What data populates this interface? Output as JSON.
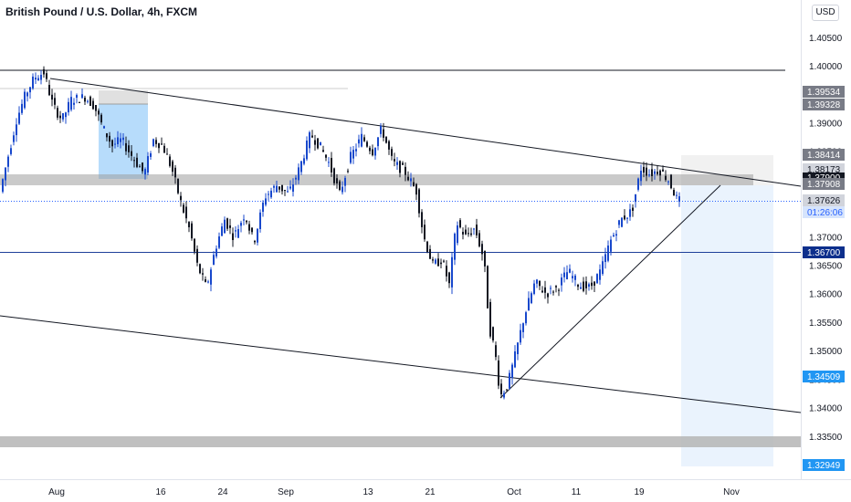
{
  "header": {
    "title": "British Pound / U.S. Dollar, 4h, FXCM",
    "currency_button": "USD"
  },
  "colors": {
    "candle": "#131722",
    "candle_up": "#1848cc",
    "price_line": "#2962ff",
    "support_line": "#1e3f9a",
    "zone": "#9e9e9e",
    "target_zone": "#e3effc",
    "entry_box": "#90caf9"
  },
  "price_scale": {
    "ticks": [
      "1.40500",
      "1.40000",
      "1.39500",
      "1.39000",
      "1.38500",
      "1.38000",
      "1.37500",
      "1.37000",
      "1.36500",
      "1.36000",
      "1.35500",
      "1.35000",
      "1.34500",
      "1.34000",
      "1.33500",
      "1.33000"
    ]
  },
  "time_scale": {
    "ticks": [
      "Aug",
      "16",
      "24",
      "Sep",
      "13",
      "21",
      "Oct",
      "11",
      "19",
      "Nov"
    ]
  },
  "price_labels": {
    "resistance_top": "1.39534",
    "resistance_bottom": "1.39328",
    "target_box_top": "1.38414",
    "level_1": "1.38173",
    "level_2": "1.37908",
    "level_3": "1.37900",
    "current_price": "1.37626",
    "countdown": "01:26:06",
    "support": "1.36700",
    "target_1": "1.34509",
    "target_2": "1.32949"
  },
  "chart_data": {
    "type": "candlestick",
    "symbol": "GBPUSD",
    "interval": "4h",
    "ylim": [
      1.3295,
      1.4065
    ],
    "y_ticks": [
      1.405,
      1.4,
      1.395,
      1.39,
      1.385,
      1.38,
      1.375,
      1.37,
      1.365,
      1.36,
      1.355,
      1.35,
      1.345,
      1.34,
      1.335,
      1.33
    ],
    "x_ticks": [
      "Aug",
      "16",
      "24",
      "Sep",
      "13",
      "21",
      "Oct",
      "11",
      "19",
      "Nov"
    ],
    "waypoints": [
      [
        0,
        1.3765
      ],
      [
        10,
        1.3835
      ],
      [
        20,
        1.3905
      ],
      [
        30,
        1.395
      ],
      [
        40,
        1.398
      ],
      [
        50,
        1.3988
      ],
      [
        60,
        1.393
      ],
      [
        70,
        1.3905
      ],
      [
        80,
        1.394
      ],
      [
        95,
        1.3945
      ],
      [
        105,
        1.393
      ],
      [
        115,
        1.389
      ],
      [
        125,
        1.386
      ],
      [
        135,
        1.387
      ],
      [
        145,
        1.3845
      ],
      [
        160,
        1.381
      ],
      [
        170,
        1.387
      ],
      [
        180,
        1.386
      ],
      [
        190,
        1.382
      ],
      [
        200,
        1.376
      ],
      [
        210,
        1.371
      ],
      [
        218,
        1.365
      ],
      [
        228,
        1.361
      ],
      [
        238,
        1.368
      ],
      [
        248,
        1.373
      ],
      [
        258,
        1.37
      ],
      [
        270,
        1.374
      ],
      [
        280,
        1.369
      ],
      [
        292,
        1.377
      ],
      [
        305,
        1.379
      ],
      [
        318,
        1.3775
      ],
      [
        330,
        1.382
      ],
      [
        342,
        1.388
      ],
      [
        352,
        1.386
      ],
      [
        362,
        1.383
      ],
      [
        374,
        1.3775
      ],
      [
        386,
        1.384
      ],
      [
        398,
        1.3875
      ],
      [
        410,
        1.385
      ],
      [
        420,
        1.389
      ],
      [
        432,
        1.383
      ],
      [
        445,
        1.3815
      ],
      [
        458,
        1.378
      ],
      [
        466,
        1.37
      ],
      [
        476,
        1.365
      ],
      [
        486,
        1.366
      ],
      [
        494,
        1.3615
      ],
      [
        502,
        1.3725
      ],
      [
        512,
        1.37
      ],
      [
        522,
        1.3715
      ],
      [
        532,
        1.366
      ],
      [
        538,
        1.354
      ],
      [
        544,
        1.35
      ],
      [
        550,
        1.342
      ],
      [
        558,
        1.344
      ],
      [
        566,
        1.349
      ],
      [
        576,
        1.356
      ],
      [
        588,
        1.362
      ],
      [
        600,
        1.36
      ],
      [
        612,
        1.361
      ],
      [
        624,
        1.364
      ],
      [
        636,
        1.3615
      ],
      [
        648,
        1.361
      ],
      [
        660,
        1.364
      ],
      [
        670,
        1.369
      ],
      [
        682,
        1.373
      ],
      [
        694,
        1.3745
      ],
      [
        704,
        1.382
      ],
      [
        714,
        1.381
      ],
      [
        724,
        1.3818
      ],
      [
        734,
        1.38
      ],
      [
        744,
        1.3763
      ]
    ]
  }
}
